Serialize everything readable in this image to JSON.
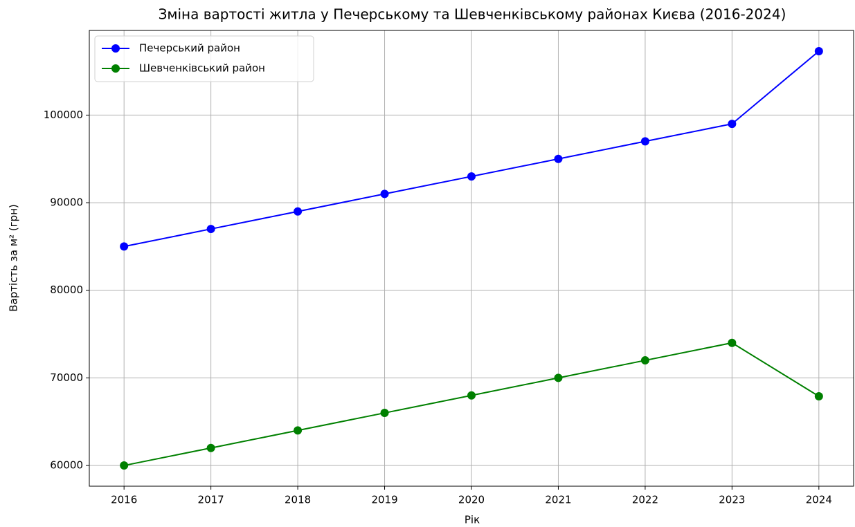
{
  "chart_data": {
    "type": "line",
    "title": "Зміна вартості житла у Печерському та Шевченківському районах Києва (2016-2024)",
    "xlabel": "Рік",
    "ylabel": "Вартість за м² (грн)",
    "x": [
      2016,
      2017,
      2018,
      2019,
      2020,
      2021,
      2022,
      2023,
      2024
    ],
    "series": [
      {
        "name": "Печерський район",
        "color": "#0000ff",
        "values": [
          85000,
          87000,
          89000,
          91000,
          93000,
          95000,
          97000,
          99000,
          107300
        ]
      },
      {
        "name": "Шевченківський район",
        "color": "#008000",
        "values": [
          60000,
          62000,
          64000,
          66000,
          68000,
          70000,
          72000,
          74000,
          67900
        ]
      }
    ],
    "xlim": [
      2015.6,
      2024.4
    ],
    "xticks": [
      2016,
      2017,
      2018,
      2019,
      2020,
      2021,
      2022,
      2023,
      2024
    ],
    "ylim": [
      57635,
      109665
    ],
    "yticks": [
      60000,
      70000,
      80000,
      90000,
      100000
    ],
    "grid": true,
    "legend": "upper-left"
  }
}
